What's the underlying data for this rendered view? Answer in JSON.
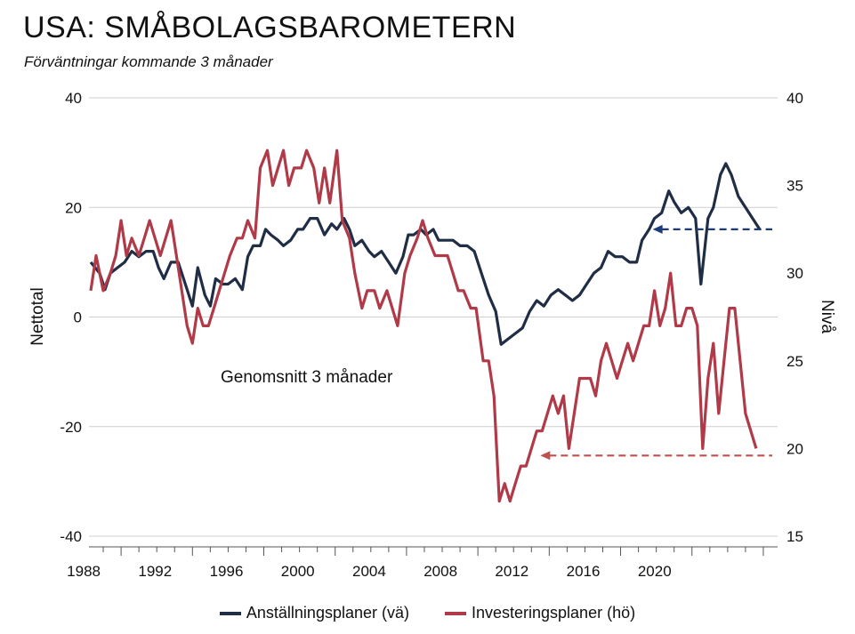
{
  "title": "USA: SMÅBOLAGSBAROMETERN",
  "subtitle": "Förväntningar kommande 3 månader",
  "colors": {
    "employment": "#1f2d45",
    "investment": "#b03a48"
  },
  "chart_data": {
    "type": "line",
    "title": "USA: SMÅBOLAGSBAROMETERN",
    "subtitle": "Förväntningar kommande 3 månader",
    "ylabel_left": "Nettotal",
    "ylabel_right": "Nivå",
    "ylim_left": [
      -40,
      40
    ],
    "ylim_right": [
      15,
      40
    ],
    "xlim": [
      1986.2,
      2024.8
    ],
    "yticks_left": [
      "40",
      "20",
      "0",
      "-20",
      "-40"
    ],
    "yticks_right": [
      "40",
      "35",
      "30",
      "25",
      "20",
      "15"
    ],
    "xticks": [
      "1988",
      "1992",
      "1996",
      "2000",
      "2004",
      "2008",
      "2012",
      "2016",
      "2020"
    ],
    "annotation": "Genomsnitt 3 månader",
    "reference_lines": [
      {
        "series": "Anställningsplaner (vä)",
        "y": 16,
        "from_x": 2017.8,
        "to_x": 2024.5
      },
      {
        "series": "Investeringsplaner (hö)",
        "y": 19.6,
        "from_x": 2011.5,
        "to_x": 2024.5
      }
    ],
    "legend_position": "bottom",
    "series": [
      {
        "name": "Anställningsplaner (vä)",
        "axis": "left",
        "points": [
          [
            1986.3,
            10
          ],
          [
            1986.8,
            8
          ],
          [
            1987.1,
            5
          ],
          [
            1987.4,
            8
          ],
          [
            1987.8,
            9
          ],
          [
            1988.2,
            10
          ],
          [
            1988.6,
            12
          ],
          [
            1989.0,
            11
          ],
          [
            1989.4,
            12
          ],
          [
            1989.8,
            12
          ],
          [
            1990.1,
            9
          ],
          [
            1990.4,
            7
          ],
          [
            1990.8,
            10
          ],
          [
            1991.2,
            10
          ],
          [
            1991.6,
            6
          ],
          [
            1992.0,
            2
          ],
          [
            1992.3,
            9
          ],
          [
            1992.7,
            4
          ],
          [
            1993.0,
            2
          ],
          [
            1993.3,
            7
          ],
          [
            1993.7,
            6
          ],
          [
            1994.0,
            6
          ],
          [
            1994.4,
            7
          ],
          [
            1994.8,
            5
          ],
          [
            1995.1,
            11
          ],
          [
            1995.4,
            13
          ],
          [
            1995.8,
            13
          ],
          [
            1996.1,
            16
          ],
          [
            1996.4,
            15
          ],
          [
            1996.8,
            14
          ],
          [
            1997.1,
            13
          ],
          [
            1997.5,
            14
          ],
          [
            1997.9,
            16
          ],
          [
            1998.2,
            16
          ],
          [
            1998.6,
            18
          ],
          [
            1999.0,
            18
          ],
          [
            1999.4,
            15
          ],
          [
            1999.8,
            17
          ],
          [
            2000.1,
            16
          ],
          [
            2000.5,
            18
          ],
          [
            2000.8,
            16
          ],
          [
            2001.1,
            13
          ],
          [
            2001.5,
            14
          ],
          [
            2001.9,
            12
          ],
          [
            2002.2,
            11
          ],
          [
            2002.6,
            12
          ],
          [
            2003.0,
            10
          ],
          [
            2003.4,
            8
          ],
          [
            2003.8,
            11
          ],
          [
            2004.1,
            15
          ],
          [
            2004.4,
            15
          ],
          [
            2004.8,
            16
          ],
          [
            2005.1,
            15
          ],
          [
            2005.5,
            16
          ],
          [
            2005.8,
            14
          ],
          [
            2006.2,
            14
          ],
          [
            2006.6,
            14
          ],
          [
            2007.0,
            13
          ],
          [
            2007.4,
            13
          ],
          [
            2007.8,
            12
          ],
          [
            2008.2,
            8
          ],
          [
            2008.6,
            4
          ],
          [
            2009.0,
            1
          ],
          [
            2009.3,
            -5
          ],
          [
            2009.7,
            -4
          ],
          [
            2010.1,
            -3
          ],
          [
            2010.5,
            -2
          ],
          [
            2010.9,
            1
          ],
          [
            2011.3,
            3
          ],
          [
            2011.7,
            2
          ],
          [
            2012.1,
            4
          ],
          [
            2012.5,
            5
          ],
          [
            2012.9,
            4
          ],
          [
            2013.3,
            3
          ],
          [
            2013.7,
            4
          ],
          [
            2014.1,
            6
          ],
          [
            2014.5,
            8
          ],
          [
            2014.9,
            9
          ],
          [
            2015.3,
            12
          ],
          [
            2015.7,
            11
          ],
          [
            2016.1,
            11
          ],
          [
            2016.5,
            10
          ],
          [
            2016.9,
            10
          ],
          [
            2017.2,
            14
          ],
          [
            2017.6,
            16
          ],
          [
            2017.9,
            18
          ],
          [
            2018.3,
            19
          ],
          [
            2018.7,
            23
          ],
          [
            2019.0,
            21
          ],
          [
            2019.4,
            19
          ],
          [
            2019.8,
            20
          ],
          [
            2020.2,
            18
          ],
          [
            2020.5,
            6
          ],
          [
            2020.9,
            18
          ],
          [
            2021.2,
            20
          ],
          [
            2021.6,
            26
          ],
          [
            2021.9,
            28
          ],
          [
            2022.2,
            26
          ],
          [
            2022.6,
            22
          ],
          [
            2023.0,
            20
          ],
          [
            2023.4,
            18
          ],
          [
            2023.8,
            16
          ]
        ]
      },
      {
        "name": "Investeringsplaner (hö)",
        "axis": "right",
        "points": [
          [
            1986.3,
            29
          ],
          [
            1986.6,
            31
          ],
          [
            1987.0,
            29
          ],
          [
            1987.4,
            30
          ],
          [
            1987.7,
            31
          ],
          [
            1988.0,
            33
          ],
          [
            1988.3,
            31
          ],
          [
            1988.6,
            32
          ],
          [
            1989.0,
            31
          ],
          [
            1989.3,
            32
          ],
          [
            1989.6,
            33
          ],
          [
            1989.9,
            32
          ],
          [
            1990.2,
            31
          ],
          [
            1990.5,
            32
          ],
          [
            1990.8,
            33
          ],
          [
            1991.1,
            31
          ],
          [
            1991.4,
            29
          ],
          [
            1991.7,
            27
          ],
          [
            1992.0,
            26
          ],
          [
            1992.3,
            28
          ],
          [
            1992.6,
            27
          ],
          [
            1992.9,
            27
          ],
          [
            1993.2,
            28
          ],
          [
            1993.5,
            29
          ],
          [
            1993.8,
            30
          ],
          [
            1994.1,
            31
          ],
          [
            1994.5,
            32
          ],
          [
            1994.8,
            32
          ],
          [
            1995.1,
            33
          ],
          [
            1995.5,
            32
          ],
          [
            1995.8,
            36
          ],
          [
            1996.2,
            37
          ],
          [
            1996.5,
            35
          ],
          [
            1996.8,
            36
          ],
          [
            1997.1,
            37
          ],
          [
            1997.4,
            35
          ],
          [
            1997.7,
            36
          ],
          [
            1998.1,
            36
          ],
          [
            1998.4,
            37
          ],
          [
            1998.8,
            36
          ],
          [
            1999.1,
            34
          ],
          [
            1999.4,
            36
          ],
          [
            1999.7,
            34
          ],
          [
            2000.1,
            37
          ],
          [
            2000.4,
            33
          ],
          [
            2000.8,
            32
          ],
          [
            2001.1,
            30
          ],
          [
            2001.5,
            28
          ],
          [
            2001.8,
            29
          ],
          [
            2002.2,
            29
          ],
          [
            2002.5,
            28
          ],
          [
            2002.9,
            29
          ],
          [
            2003.2,
            28
          ],
          [
            2003.5,
            27
          ],
          [
            2003.9,
            30
          ],
          [
            2004.2,
            31
          ],
          [
            2004.6,
            32
          ],
          [
            2004.9,
            33
          ],
          [
            2005.2,
            32
          ],
          [
            2005.6,
            31
          ],
          [
            2005.9,
            31
          ],
          [
            2006.3,
            31
          ],
          [
            2006.6,
            30
          ],
          [
            2006.9,
            29
          ],
          [
            2007.2,
            29
          ],
          [
            2007.6,
            28
          ],
          [
            2007.9,
            28
          ],
          [
            2008.3,
            25
          ],
          [
            2008.6,
            25
          ],
          [
            2008.9,
            23
          ],
          [
            2009.2,
            17
          ],
          [
            2009.5,
            18
          ],
          [
            2009.8,
            17
          ],
          [
            2010.1,
            18
          ],
          [
            2010.4,
            19
          ],
          [
            2010.7,
            19
          ],
          [
            2011.0,
            20
          ],
          [
            2011.3,
            21
          ],
          [
            2011.6,
            21
          ],
          [
            2011.9,
            22
          ],
          [
            2012.2,
            23
          ],
          [
            2012.5,
            22
          ],
          [
            2012.8,
            23
          ],
          [
            2013.1,
            20
          ],
          [
            2013.4,
            22
          ],
          [
            2013.7,
            24
          ],
          [
            2014.0,
            24
          ],
          [
            2014.3,
            24
          ],
          [
            2014.6,
            23
          ],
          [
            2014.9,
            25
          ],
          [
            2015.2,
            26
          ],
          [
            2015.5,
            25
          ],
          [
            2015.8,
            24
          ],
          [
            2016.1,
            25
          ],
          [
            2016.4,
            26
          ],
          [
            2016.7,
            25
          ],
          [
            2017.0,
            26
          ],
          [
            2017.3,
            27
          ],
          [
            2017.6,
            27
          ],
          [
            2017.9,
            29
          ],
          [
            2018.2,
            27
          ],
          [
            2018.5,
            28
          ],
          [
            2018.8,
            30
          ],
          [
            2019.1,
            27
          ],
          [
            2019.4,
            27
          ],
          [
            2019.7,
            28
          ],
          [
            2020.0,
            28
          ],
          [
            2020.3,
            27
          ],
          [
            2020.6,
            20
          ],
          [
            2020.9,
            24
          ],
          [
            2021.2,
            26
          ],
          [
            2021.5,
            22
          ],
          [
            2021.8,
            25
          ],
          [
            2022.1,
            28
          ],
          [
            2022.4,
            28
          ],
          [
            2022.7,
            25
          ],
          [
            2023.0,
            22
          ],
          [
            2023.3,
            21
          ],
          [
            2023.6,
            20
          ]
        ]
      }
    ]
  }
}
